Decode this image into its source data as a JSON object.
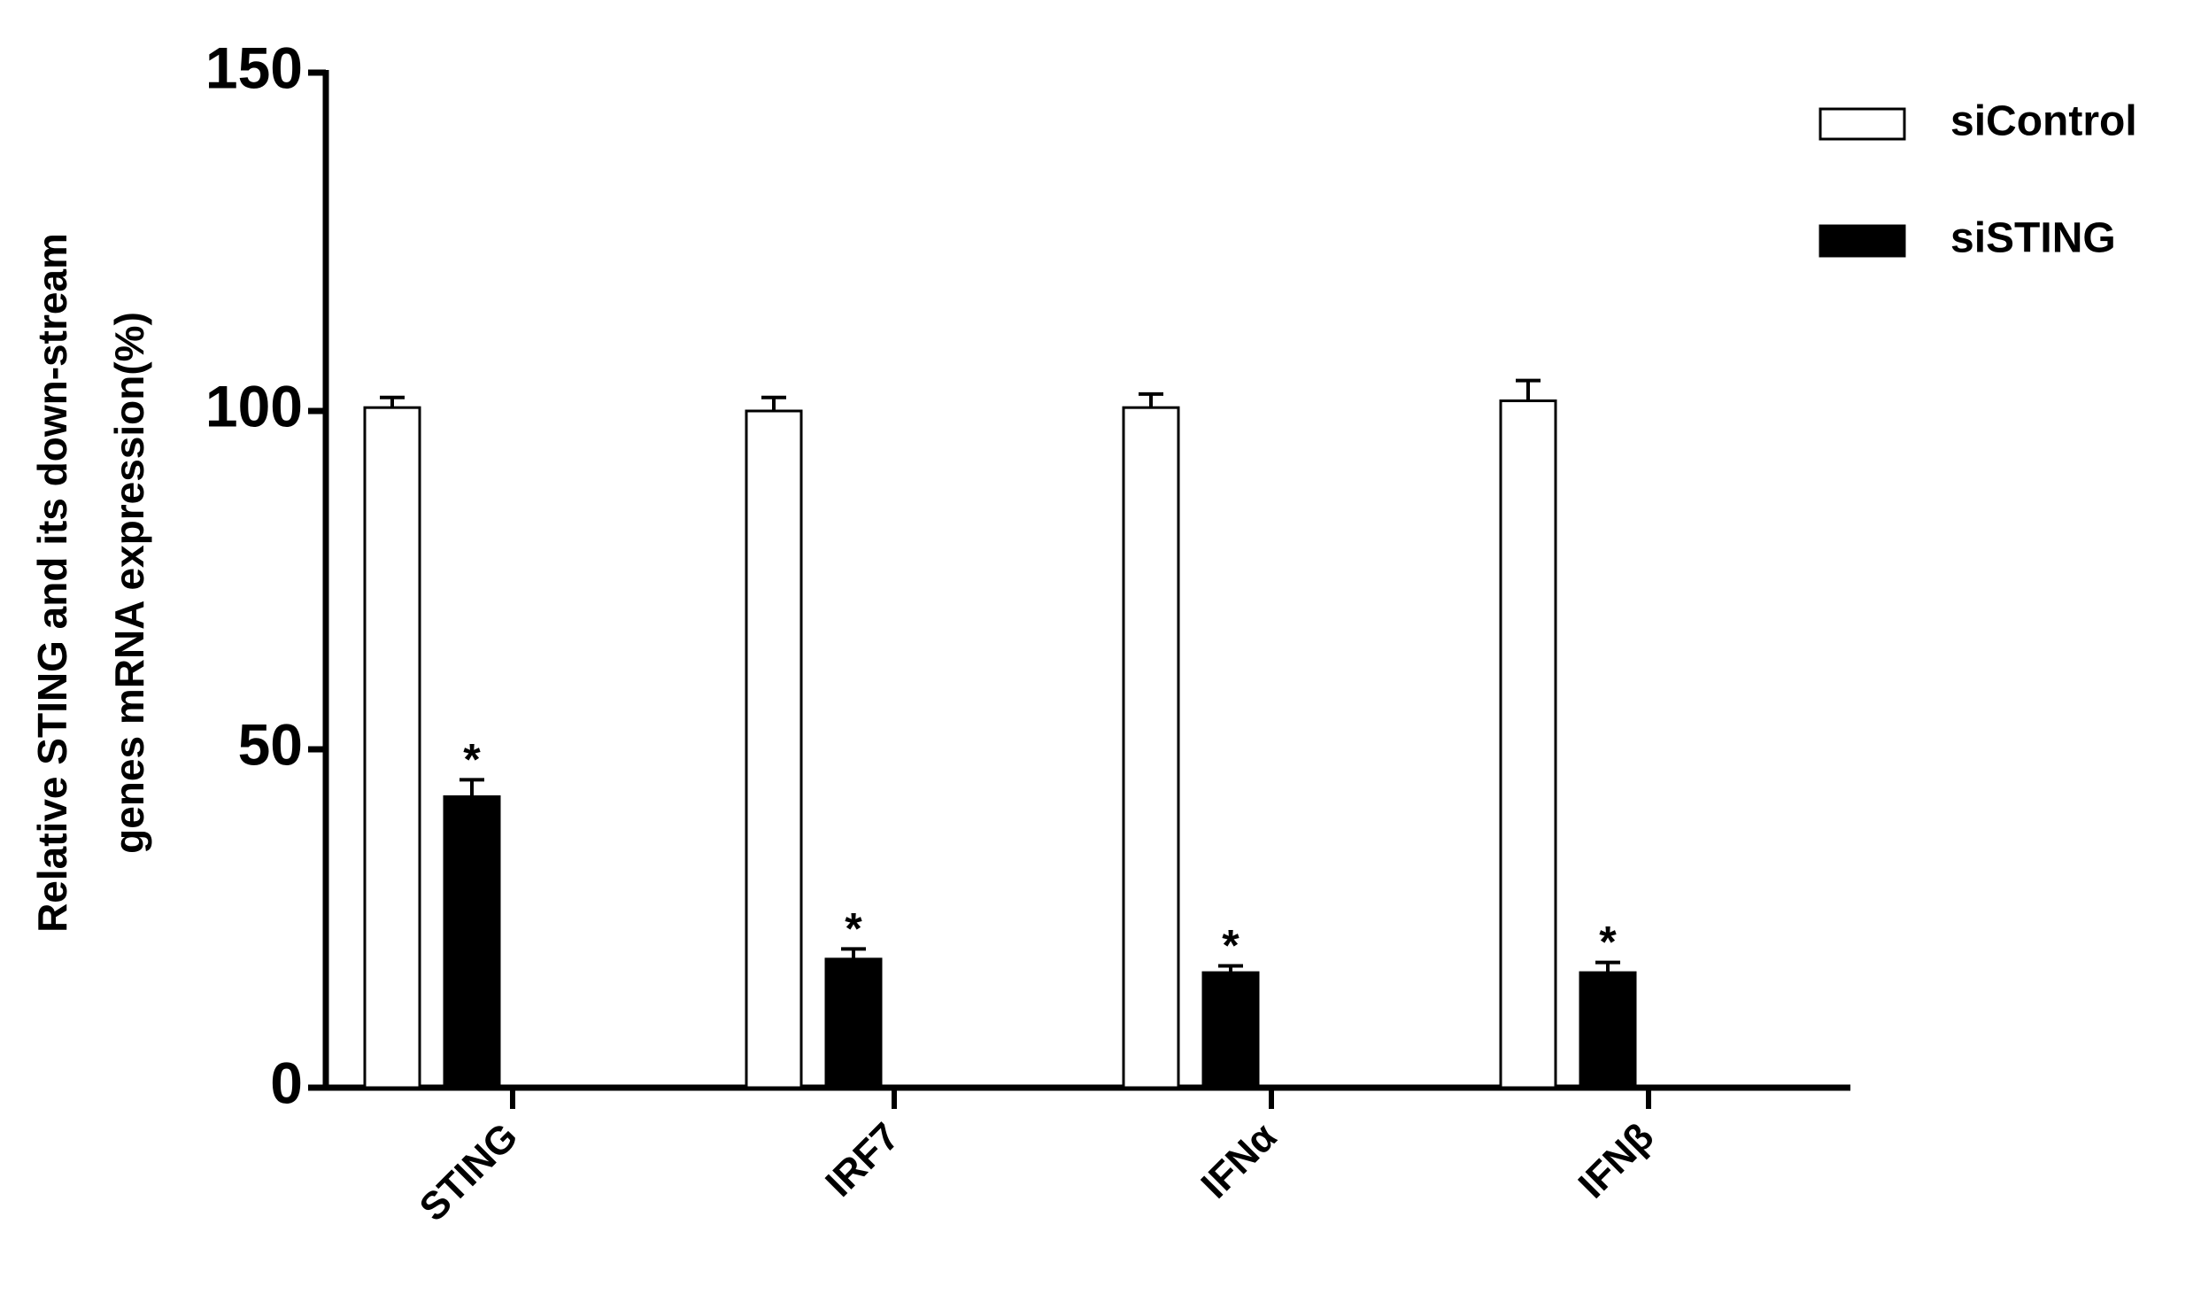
{
  "chart_data": {
    "type": "bar",
    "y_label": [
      "Relative STING and its down-stream",
      "genes mRNA expression(%)"
    ],
    "categories": [
      "STING",
      "IRF7",
      "IFNα",
      "IFNβ"
    ],
    "series": [
      {
        "name": "siControl",
        "color": "#ffffff",
        "values": [
          100.5,
          100,
          100.5,
          101.5
        ],
        "errors": [
          1.5,
          2,
          2,
          3
        ]
      },
      {
        "name": "siSTING",
        "color": "#000000",
        "values": [
          43,
          19,
          17,
          17
        ],
        "errors": [
          2.5,
          1.5,
          1,
          1.5
        ],
        "markers": [
          "*",
          "*",
          "*",
          "*"
        ]
      }
    ],
    "ylim": [
      0,
      150
    ],
    "yticks": [
      0,
      50,
      100,
      150
    ],
    "grid": false,
    "legend": "upper right"
  }
}
